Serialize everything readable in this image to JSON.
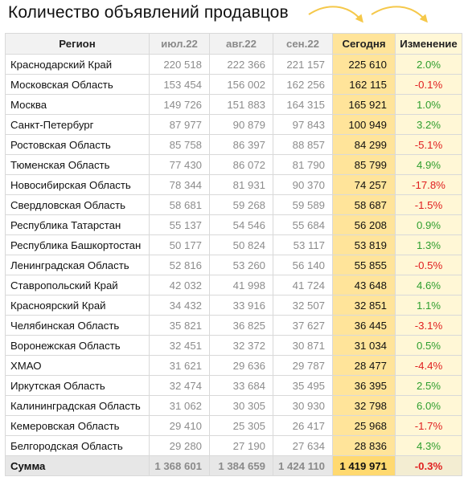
{
  "title": "Количество объявлений продавцов",
  "colors": {
    "positive": "#2e9e2e",
    "negative": "#e02020",
    "today_bg": "#ffe49a",
    "arrow": "#f5c84a"
  },
  "icons": [
    "curved-arrow-icon",
    "curved-arrow-icon"
  ],
  "headers": [
    "Регион",
    "июл.22",
    "авг.22",
    "сен.22",
    "Сегодня",
    "Изменение"
  ],
  "rows": [
    {
      "region": "Краснодарский Край",
      "jul": "220 518",
      "aug": "222 366",
      "sep": "221 157",
      "today": "225 610",
      "change": "2.0%"
    },
    {
      "region": "Московская Область",
      "jul": "153 454",
      "aug": "156 002",
      "sep": "162 256",
      "today": "162 115",
      "change": "-0.1%"
    },
    {
      "region": "Москва",
      "jul": "149 726",
      "aug": "151 883",
      "sep": "164 315",
      "today": "165 921",
      "change": "1.0%"
    },
    {
      "region": "Санкт-Петербург",
      "jul": "87 977",
      "aug": "90 879",
      "sep": "97 843",
      "today": "100 949",
      "change": "3.2%"
    },
    {
      "region": "Ростовская Область",
      "jul": "85 758",
      "aug": "86 397",
      "sep": "88 857",
      "today": "84 299",
      "change": "-5.1%"
    },
    {
      "region": "Тюменская Область",
      "jul": "77 430",
      "aug": "86 072",
      "sep": "81 790",
      "today": "85 799",
      "change": "4.9%"
    },
    {
      "region": "Новосибирская Область",
      "jul": "78 344",
      "aug": "81 931",
      "sep": "90 370",
      "today": "74 257",
      "change": "-17.8%"
    },
    {
      "region": "Свердловская Область",
      "jul": "58 681",
      "aug": "59 268",
      "sep": "59 589",
      "today": "58 687",
      "change": "-1.5%"
    },
    {
      "region": "Республика Татарстан",
      "jul": "55 137",
      "aug": "54 546",
      "sep": "55 684",
      "today": "56 208",
      "change": "0.9%"
    },
    {
      "region": "Республика Башкортостан",
      "jul": "50 177",
      "aug": "50 824",
      "sep": "53 117",
      "today": "53 819",
      "change": "1.3%"
    },
    {
      "region": "Ленинградская Область",
      "jul": "52 816",
      "aug": "53 260",
      "sep": "56 140",
      "today": "55 855",
      "change": "-0.5%"
    },
    {
      "region": "Ставропольский Край",
      "jul": "42 032",
      "aug": "41 998",
      "sep": "41 724",
      "today": "43 648",
      "change": "4.6%"
    },
    {
      "region": "Красноярский Край",
      "jul": "34 432",
      "aug": "33 916",
      "sep": "32 507",
      "today": "32 851",
      "change": "1.1%"
    },
    {
      "region": "Челябинская Область",
      "jul": "35 821",
      "aug": "36 825",
      "sep": "37 627",
      "today": "36 445",
      "change": "-3.1%"
    },
    {
      "region": "Воронежская Область",
      "jul": "32 451",
      "aug": "32 372",
      "sep": "30 871",
      "today": "31 034",
      "change": "0.5%"
    },
    {
      "region": "ХМАО",
      "jul": "31 621",
      "aug": "29 636",
      "sep": "29 787",
      "today": "28 477",
      "change": "-4.4%"
    },
    {
      "region": "Иркутская Область",
      "jul": "32 474",
      "aug": "33 684",
      "sep": "35 495",
      "today": "36 395",
      "change": "2.5%"
    },
    {
      "region": "Калининградская Область",
      "jul": "31 062",
      "aug": "30 305",
      "sep": "30 930",
      "today": "32 798",
      "change": "6.0%"
    },
    {
      "region": "Кемеровская Область",
      "jul": "29 410",
      "aug": "25 305",
      "sep": "26 417",
      "today": "25 968",
      "change": "-1.7%"
    },
    {
      "region": "Белгородская Область",
      "jul": "29 280",
      "aug": "27 190",
      "sep": "27 634",
      "today": "28 836",
      "change": "4.3%"
    }
  ],
  "total": {
    "region": "Сумма",
    "jul": "1 368 601",
    "aug": "1 384 659",
    "sep": "1 424 110",
    "today": "1 419 971",
    "change": "-0.3%"
  }
}
